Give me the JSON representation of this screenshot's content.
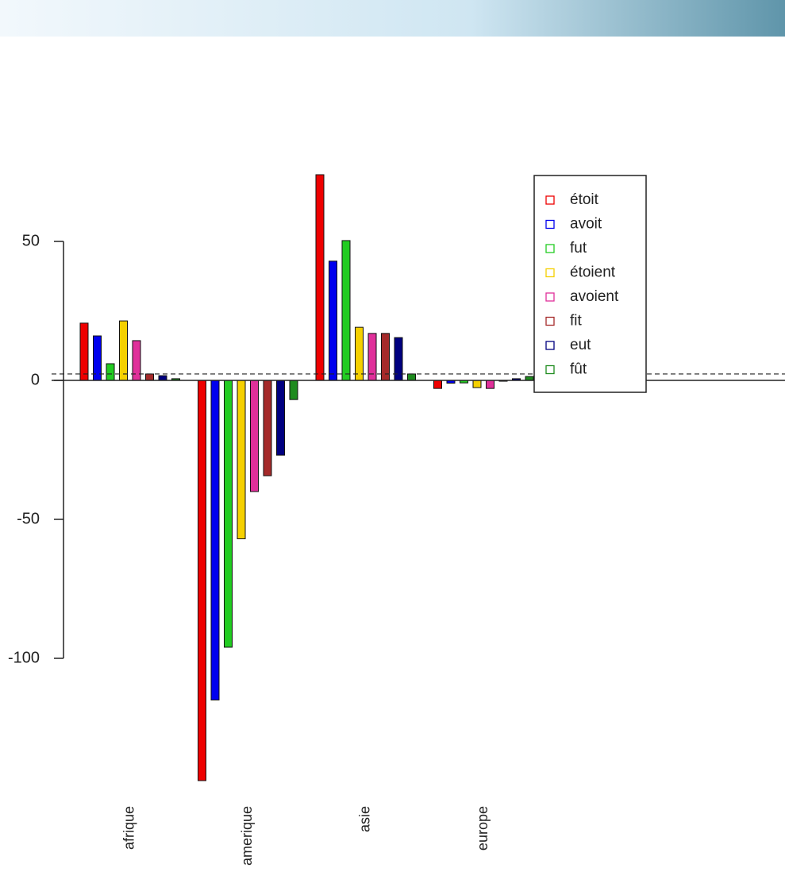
{
  "chart_data": {
    "type": "bar",
    "categories": [
      "afrique",
      "amerique",
      "asie",
      "europe"
    ],
    "series": [
      {
        "name": "étoit",
        "color": "#ee0000",
        "values": [
          20.6,
          -144,
          74,
          -2.9
        ]
      },
      {
        "name": "avoit",
        "color": "#0000ee",
        "values": [
          16,
          -115,
          42.9,
          -1
        ]
      },
      {
        "name": "fut",
        "color": "#22cc22",
        "values": [
          6,
          -96,
          50.3,
          -0.9
        ]
      },
      {
        "name": "étoient",
        "color": "#f5d000",
        "values": [
          21.4,
          -57,
          19.1,
          -2.6
        ]
      },
      {
        "name": "avoient",
        "color": "#e0309a",
        "values": [
          14.3,
          -40,
          16.9,
          -2.9
        ]
      },
      {
        "name": "fit",
        "color": "#a52a2a",
        "values": [
          2.3,
          -34.3,
          16.9,
          -0.3
        ]
      },
      {
        "name": "eut",
        "color": "#000080",
        "values": [
          1.7,
          -26.9,
          15.4,
          0.6
        ]
      },
      {
        "name": "fût",
        "color": "#1e8b1e",
        "values": [
          0.6,
          -6.9,
          2.3,
          1.4
        ]
      }
    ],
    "ylim": [
      -150,
      80
    ],
    "yticks": [
      50,
      0,
      -50,
      -100
    ],
    "reference_line": 2.3,
    "legend": "top"
  }
}
